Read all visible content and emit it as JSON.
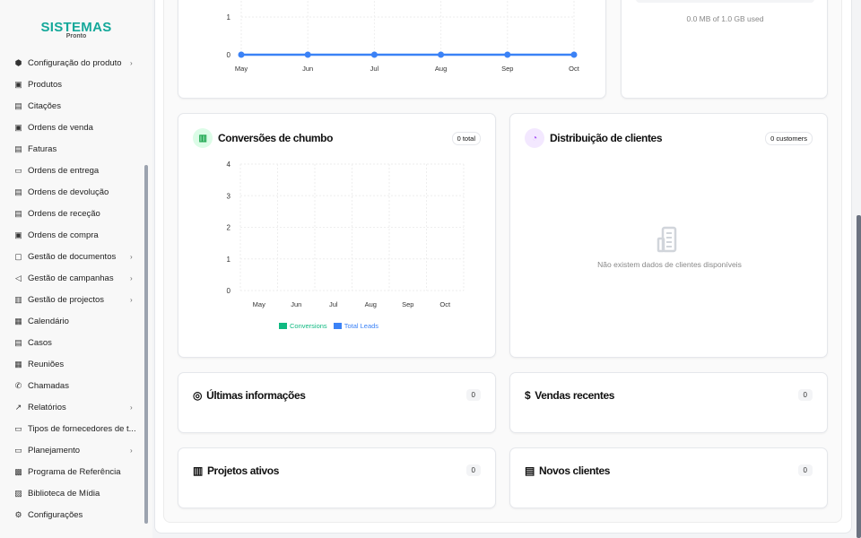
{
  "brand": {
    "name": "SISTEMAS",
    "sub": "Pronto"
  },
  "sidebar": {
    "items": [
      {
        "label": "Configuração do produto",
        "icon": "package-icon",
        "chevron": true
      },
      {
        "label": "Produtos",
        "icon": "archive-icon",
        "chevron": false
      },
      {
        "label": "Citações",
        "icon": "document-icon",
        "chevron": false
      },
      {
        "label": "Ordens de venda",
        "icon": "archive-icon",
        "chevron": false
      },
      {
        "label": "Faturas",
        "icon": "document-icon",
        "chevron": false
      },
      {
        "label": "Ordens de entrega",
        "icon": "ticket-icon",
        "chevron": false
      },
      {
        "label": "Ordens de devolução",
        "icon": "document-icon",
        "chevron": false
      },
      {
        "label": "Ordens de receção",
        "icon": "document-icon",
        "chevron": false
      },
      {
        "label": "Ordens de compra",
        "icon": "archive-icon",
        "chevron": false
      },
      {
        "label": "Gestão de documentos",
        "icon": "folder-icon",
        "chevron": true
      },
      {
        "label": "Gestão de campanhas",
        "icon": "megaphone-icon",
        "chevron": true
      },
      {
        "label": "Gestão de projectos",
        "icon": "briefcase-icon",
        "chevron": true
      },
      {
        "label": "Calendário",
        "icon": "calendar-icon",
        "chevron": false
      },
      {
        "label": "Casos",
        "icon": "document-icon",
        "chevron": false
      },
      {
        "label": "Reuniões",
        "icon": "calendar-grid-icon",
        "chevron": false
      },
      {
        "label": "Chamadas",
        "icon": "phone-icon",
        "chevron": false
      },
      {
        "label": "Relatórios",
        "icon": "trending-up-icon",
        "chevron": true
      },
      {
        "label": "Tipos de fornecedores de t...",
        "icon": "ticket-icon",
        "chevron": false
      },
      {
        "label": "Planejamento",
        "icon": "credit-card-icon",
        "chevron": true
      },
      {
        "label": "Programa de Referência",
        "icon": "gift-icon",
        "chevron": false
      },
      {
        "label": "Biblioteca de Mídia",
        "icon": "image-icon",
        "chevron": false
      },
      {
        "label": "Configurações",
        "icon": "gear-icon",
        "chevron": false
      }
    ]
  },
  "storage": {
    "text": "0.0 MB of 1.0 GB used",
    "fraction": 0
  },
  "top_chart": {
    "chart_data": {
      "type": "line",
      "categories": [
        "May",
        "Jun",
        "Jul",
        "Aug",
        "Sep",
        "Oct"
      ],
      "values": [
        0,
        0,
        0,
        0,
        0,
        0
      ],
      "y_ticks_visible": [
        "0",
        "1"
      ],
      "color": "#3b82f6",
      "grid": true
    }
  },
  "conversions": {
    "title": "Conversões de chumbo",
    "badge": "0 total",
    "chart_data": {
      "type": "bar",
      "categories": [
        "May",
        "Jun",
        "Jul",
        "Aug",
        "Sep",
        "Oct"
      ],
      "ylim": [
        0,
        4
      ],
      "y_ticks": [
        "0",
        "1",
        "2",
        "3",
        "4"
      ],
      "series": [
        {
          "name": "Conversions",
          "values": [
            0,
            0,
            0,
            0,
            0,
            0
          ],
          "color": "#10b981"
        },
        {
          "name": "Total Leads",
          "values": [
            0,
            0,
            0,
            0,
            0,
            0
          ],
          "color": "#3b82f6"
        }
      ],
      "grid": true,
      "legend": "bottom"
    }
  },
  "distribution": {
    "title": "Distribuição de clientes",
    "badge": "0 customers",
    "empty": "Não existem dados de clientes disponíveis"
  },
  "cards": [
    {
      "title": "Últimas informações",
      "count": "0",
      "icon": "target-icon"
    },
    {
      "title": "Vendas recentes",
      "count": "0",
      "icon": "dollar-icon"
    },
    {
      "title": "Projetos ativos",
      "count": "0",
      "icon": "briefcase-icon"
    },
    {
      "title": "Novos clientes",
      "count": "0",
      "icon": "building-icon"
    }
  ]
}
